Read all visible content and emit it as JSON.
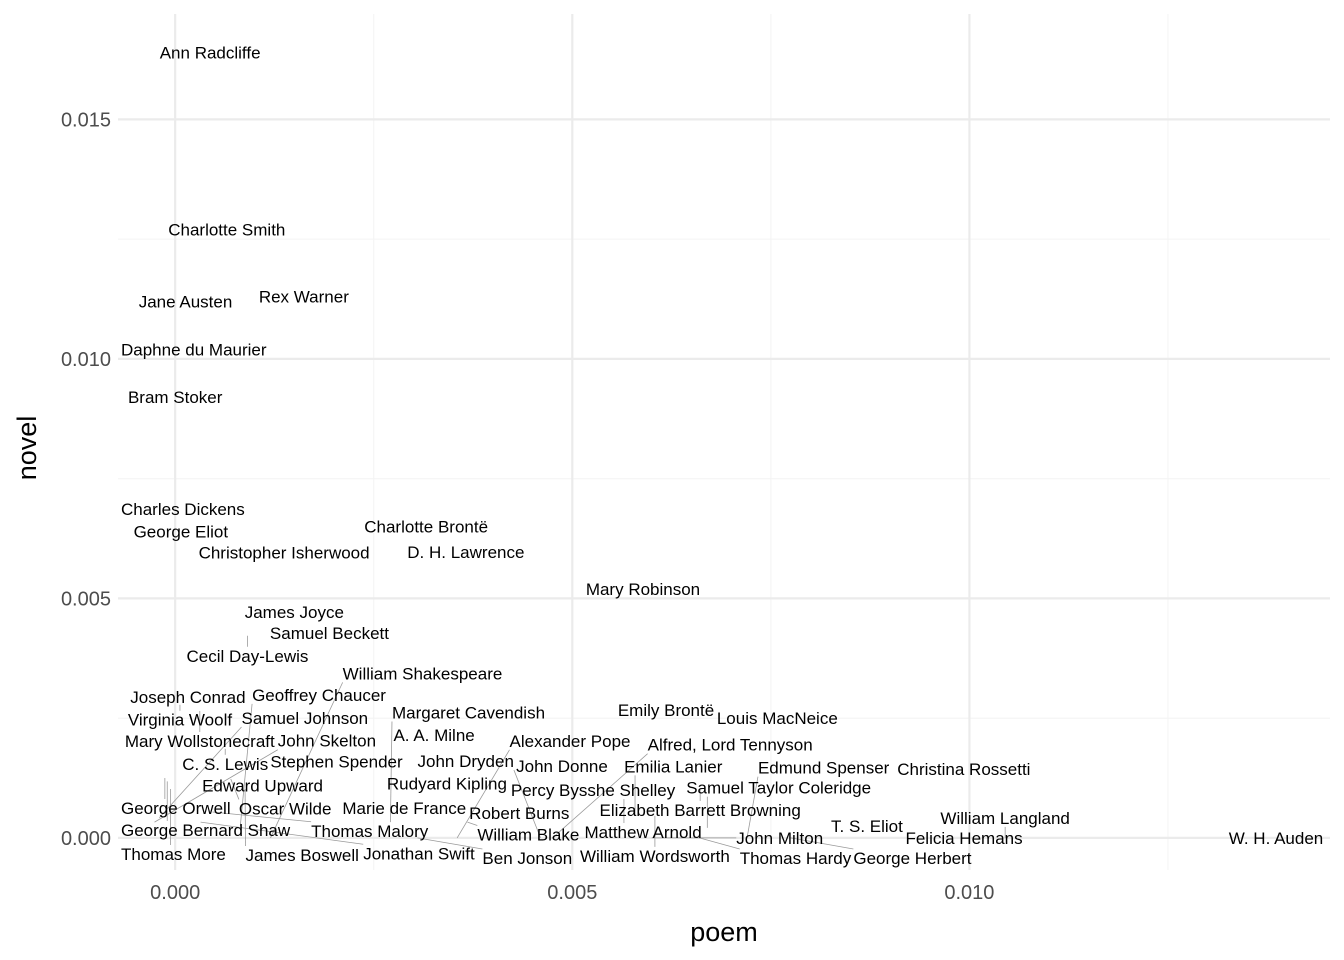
{
  "chart_data": {
    "type": "scatter",
    "mark": "text",
    "xlabel": "poem",
    "ylabel": "novel",
    "xlim": [
      -0.00072,
      0.01454
    ],
    "ylim": [
      -0.00067,
      0.0172
    ],
    "x_ticks": [
      0.0,
      0.005,
      0.01
    ],
    "x_tick_labels": [
      "0.000",
      "0.005",
      "0.010"
    ],
    "y_ticks": [
      0.0,
      0.005,
      0.01,
      0.015
    ],
    "y_tick_labels": [
      "0.000",
      "0.005",
      "0.010",
      "0.015"
    ],
    "grid": true,
    "points": [
      {
        "label": "Ann Radcliffe",
        "x": 0.00044,
        "y": 0.0164
      },
      {
        "label": "Charlotte Smith",
        "x": 0.00065,
        "y": 0.0127
      },
      {
        "label": "Jane Austen",
        "x": 0.00013,
        "y": 0.0112
      },
      {
        "label": "Rex Warner",
        "x": 0.00162,
        "y": 0.0113
      },
      {
        "label": "Daphne du Maurier",
        "x": 1e-05,
        "y": 0.0102
      },
      {
        "label": "Bram Stoker",
        "x": 0.0,
        "y": 0.0092
      },
      {
        "label": "Charles Dickens",
        "x": 0.0,
        "y": 0.00687
      },
      {
        "label": "George Eliot",
        "x": 0.0,
        "y": 0.00647
      },
      {
        "label": "Charlotte Brontë",
        "x": 0.00316,
        "y": 0.0065
      },
      {
        "label": "Christopher Isherwood",
        "x": 0.0013,
        "y": 0.00603
      },
      {
        "label": "D. H. Lawrence",
        "x": 0.00366,
        "y": 0.00597
      },
      {
        "label": "Mary Robinson",
        "x": 0.00589,
        "y": 0.0052
      },
      {
        "label": "James Joyce",
        "x": 0.0015,
        "y": 0.00472
      },
      {
        "label": "Samuel Beckett",
        "x": 0.0018,
        "y": 0.00443
      },
      {
        "label": "Cecil Day-Lewis",
        "x": 0.00091,
        "y": 0.00422
      },
      {
        "label": "Joseph Conrad",
        "x": 0.00016,
        "y": 0.00294
      },
      {
        "label": "Virginia Woolf",
        "x": 6e-05,
        "y": 0.00278
      },
      {
        "label": "Mary Wollstonecraft",
        "x": 0.00031,
        "y": 0.00265
      },
      {
        "label": "Emily Brontë",
        "x": 0.00618,
        "y": 0.00267
      },
      {
        "label": "Louis MacNeice",
        "x": 0.00738,
        "y": 0.0025
      },
      {
        "label": "A. A. Milne",
        "x": 0.00326,
        "y": 0.00215
      },
      {
        "label": "C. S. Lewis",
        "x": 0.00063,
        "y": 0.00186
      },
      {
        "label": "Stephen Spender",
        "x": 0.00196,
        "y": 0.00152
      },
      {
        "label": "John Donne",
        "x": 0.00487,
        "y": 0.0015
      },
      {
        "label": "Christina Rossetti",
        "x": 0.00993,
        "y": 0.00144
      },
      {
        "label": "Edward Upward",
        "x": 0.0011,
        "y": 0.0013
      },
      {
        "label": "George Orwell",
        "x": -0.00013,
        "y": 0.00125
      },
      {
        "label": "Oscar Wilde",
        "x": 0.0007,
        "y": 0.00123
      },
      {
        "label": "Rudyard Kipling",
        "x": 0.00335,
        "y": 0.00121
      },
      {
        "label": "George Bernard Shaw",
        "x": -0.0001,
        "y": 0.00118
      },
      {
        "label": "Thomas More",
        "x": -6e-05,
        "y": 0.00102
      },
      {
        "label": "James Boswell",
        "x": 0.00088,
        "y": 0.00102
      },
      {
        "label": "Percy Bysshe Shelley",
        "x": 0.00506,
        "y": 0.001
      },
      {
        "label": "Elizabeth Barrett Browning",
        "x": 0.00661,
        "y": 0.001
      },
      {
        "label": "Matthew Arnold",
        "x": 0.00565,
        "y": 0.00081
      },
      {
        "label": "Thomas Malory",
        "x": 0.00047,
        "y": 0.00054
      },
      {
        "label": "Marie de France",
        "x": 0.00219,
        "y": 0.0005
      },
      {
        "label": "Robert Burns",
        "x": 0.00403,
        "y": 0.00052
      },
      {
        "label": "William Wordsworth",
        "x": 0.00604,
        "y": 0.00046
      },
      {
        "label": "Emilia Lanier",
        "x": 0.00579,
        "y": 0.00046
      },
      {
        "label": "Samuel Johnson",
        "x": -0.0002,
        "y": 0.00042
      },
      {
        "label": "John Skelton",
        "x": -0.00026,
        "y": 0.00033
      },
      {
        "label": "Jonathan Swift",
        "x": 0.00032,
        "y": 0.00033
      },
      {
        "label": "Margaret Cavendish",
        "x": 0.00271,
        "y": 0.00033
      },
      {
        "label": "William Blake",
        "x": 0.00368,
        "y": 0.00033
      },
      {
        "label": "Geoffrey Chaucer",
        "x": 0.00082,
        "y": 0.00025
      },
      {
        "label": "Samuel Taylor Coleridge",
        "x": 0.0067,
        "y": 0.00021
      },
      {
        "label": "T. S. Eliot",
        "x": 0.00871,
        "y": 0.00025
      },
      {
        "label": "William Shakespeare",
        "x": 0.0012,
        "y": 0.0
      },
      {
        "label": "Ben Jonson",
        "x": 0.00305,
        "y": 0.0
      },
      {
        "label": "Alexander Pope",
        "x": 0.00355,
        "y": 0.0
      },
      {
        "label": "Alfred, Lord Tennyson",
        "x": 0.00475,
        "y": 0.0
      },
      {
        "label": "John Dryden",
        "x": 0.0046,
        "y": 0.0
      },
      {
        "label": "John Milton",
        "x": 0.006,
        "y": 0.0
      },
      {
        "label": "Thomas Hardy",
        "x": 0.0066,
        "y": 0.0
      },
      {
        "label": "Edmund Spenser",
        "x": 0.0072,
        "y": 0.0
      },
      {
        "label": "George Herbert",
        "x": 0.00775,
        "y": 0.0
      },
      {
        "label": "Felicia Hemans",
        "x": 0.00963,
        "y": 0.0
      },
      {
        "label": "William Langland",
        "x": 0.01045,
        "y": 0.0
      },
      {
        "label": "W. H. Auden",
        "x": 0.01386,
        "y": 0.0
      }
    ]
  }
}
